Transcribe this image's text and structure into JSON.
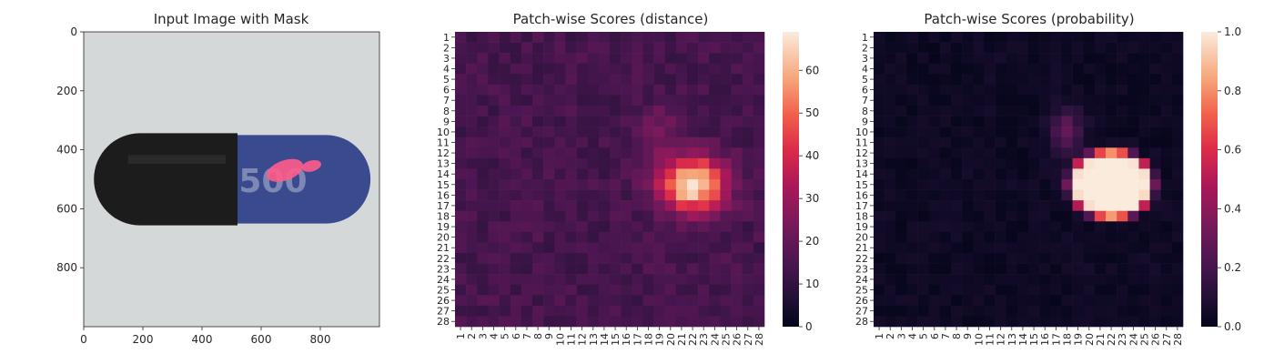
{
  "chart_data": [
    {
      "type": "image",
      "title": "Input Image with Mask",
      "xlim": [
        0,
        1000
      ],
      "ylim": [
        1000,
        0
      ],
      "xticks": [
        0,
        200,
        400,
        600,
        800
      ],
      "yticks": [
        0,
        200,
        400,
        600,
        800
      ],
      "colors": {
        "background": "#d4d8d8",
        "cap_dark": "#1c1c1c",
        "body_blue": "#3a4a8e",
        "print_text": "#7d88b4",
        "mask": "#ff5c8a"
      },
      "imprint_text": "500"
    },
    {
      "type": "heatmap",
      "title": "Patch-wise Scores (distance)",
      "rows": 28,
      "cols": 28,
      "colormap": "rocket",
      "vmin": 0,
      "vmax": 69,
      "colorbar_ticks": [
        0,
        10,
        20,
        30,
        40,
        50,
        60
      ],
      "baseline": 14,
      "hotspot": {
        "center_row": 15,
        "center_col": 22,
        "peak": 69
      }
    },
    {
      "type": "heatmap",
      "title": "Patch-wise Scores (probability)",
      "rows": 28,
      "cols": 28,
      "colormap": "rocket",
      "vmin": 0,
      "vmax": 1,
      "colorbar_ticks": [
        0.0,
        0.2,
        0.4,
        0.6,
        0.8,
        1.0
      ],
      "baseline": 0.01,
      "hotspot": {
        "center_row": 15,
        "center_col": 22,
        "peak": 1.0
      }
    }
  ]
}
